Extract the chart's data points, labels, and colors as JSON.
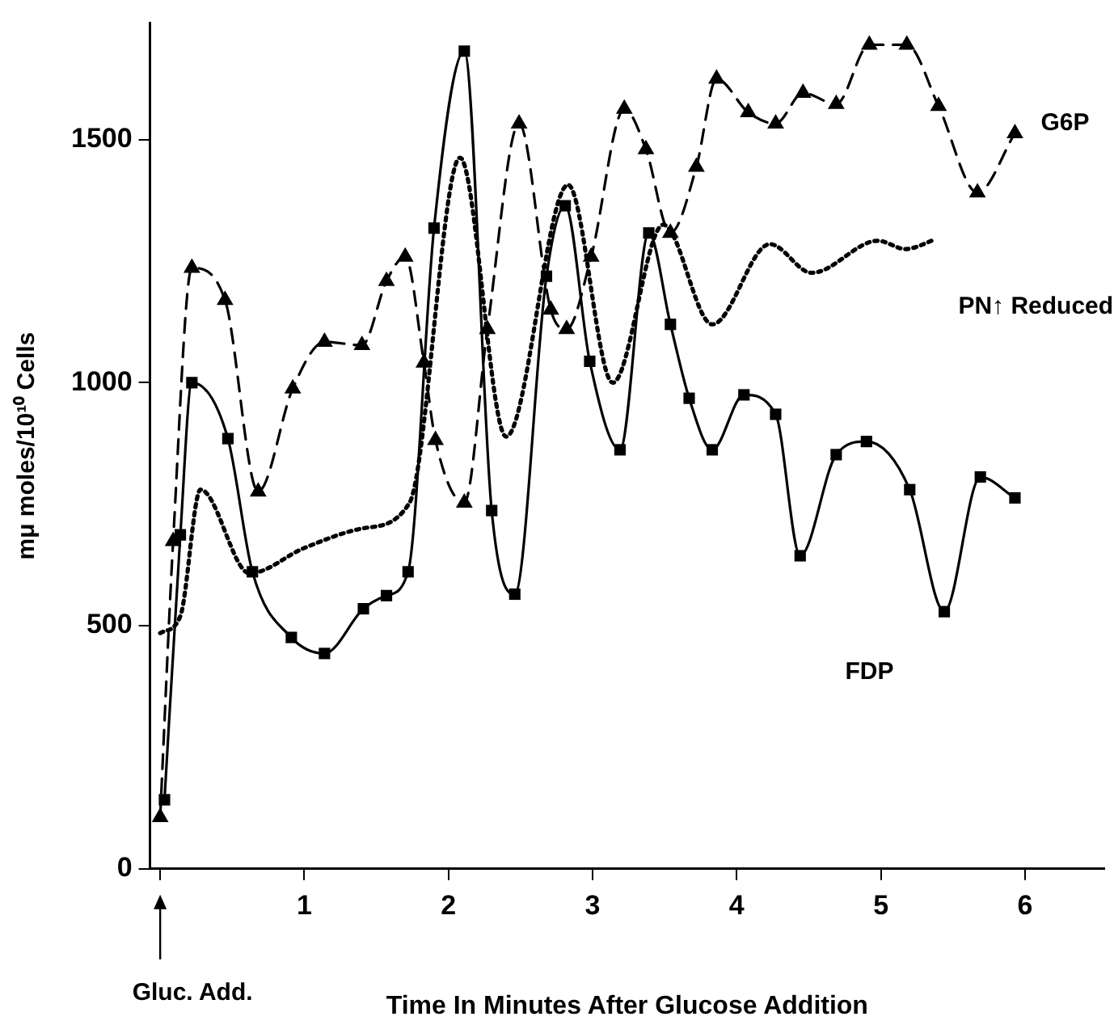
{
  "chart_data": {
    "type": "line",
    "xlabel": "Time In Minutes After Glucose Addition",
    "ylabel": "mμ moles/10¹⁰ Cells",
    "xlim": [
      -0.07,
      6.55
    ],
    "ylim": [
      0,
      1740
    ],
    "xticks": [
      {
        "value": 0,
        "label": null
      },
      1,
      2,
      3,
      4,
      5,
      6
    ],
    "yticks": [
      0,
      500,
      1000,
      1500
    ],
    "grid": false,
    "legend": false,
    "annotations": [
      "Gluc. Add."
    ],
    "series": [
      {
        "name": "G6P",
        "color": "#000000",
        "marker": "triangle",
        "line_style": "dashed",
        "x": [
          0.0,
          0.09,
          0.22,
          0.45,
          0.68,
          0.92,
          1.14,
          1.4,
          1.57,
          1.7,
          1.83,
          1.91,
          2.11,
          2.27,
          2.49,
          2.71,
          2.82,
          2.99,
          3.22,
          3.37,
          3.54,
          3.72,
          3.86,
          4.08,
          4.27,
          4.46,
          4.69,
          4.92,
          5.18,
          5.4,
          5.67,
          5.93
        ],
        "values": [
          106,
          674,
          1236,
          1170,
          776,
          988,
          1084,
          1077,
          1209,
          1259,
          1041,
          882,
          753,
          1110,
          1533,
          1150,
          1110,
          1259,
          1563,
          1480,
          1308,
          1444,
          1625,
          1556,
          1533,
          1596,
          1573,
          1695,
          1695,
          1569,
          1391,
          1513
        ]
      },
      {
        "name": "PN↑ Reduced",
        "color": "#000000",
        "marker": "none",
        "line_style": "dotted",
        "x": [
          0.0,
          0.14,
          0.28,
          0.62,
          1.0,
          1.4,
          1.73,
          2.08,
          2.4,
          2.83,
          3.14,
          3.49,
          3.83,
          4.23,
          4.52,
          4.98,
          5.17,
          5.38
        ],
        "values": [
          485,
          520,
          780,
          608,
          660,
          700,
          753,
          1463,
          889,
          1407,
          1000,
          1325,
          1120,
          1285,
          1226,
          1292,
          1275,
          1295
        ]
      },
      {
        "name": "FDP",
        "color": "#000000",
        "marker": "square",
        "line_style": "solid",
        "x": [
          0.03,
          0.14,
          0.22,
          0.47,
          0.64,
          0.91,
          1.14,
          1.41,
          1.57,
          1.72,
          1.9,
          2.11,
          2.3,
          2.46,
          2.68,
          2.81,
          2.98,
          3.19,
          3.39,
          3.54,
          3.67,
          3.83,
          4.05,
          4.27,
          4.44,
          4.69,
          4.9,
          5.2,
          5.44,
          5.69,
          5.93
        ],
        "values": [
          142,
          687,
          1000,
          885,
          611,
          476,
          443,
          535,
          562,
          611,
          1318,
          1682,
          737,
          565,
          1219,
          1364,
          1044,
          862,
          1308,
          1120,
          968,
          862,
          975,
          935,
          644,
          852,
          879,
          780,
          529,
          806,
          763
        ]
      }
    ]
  }
}
